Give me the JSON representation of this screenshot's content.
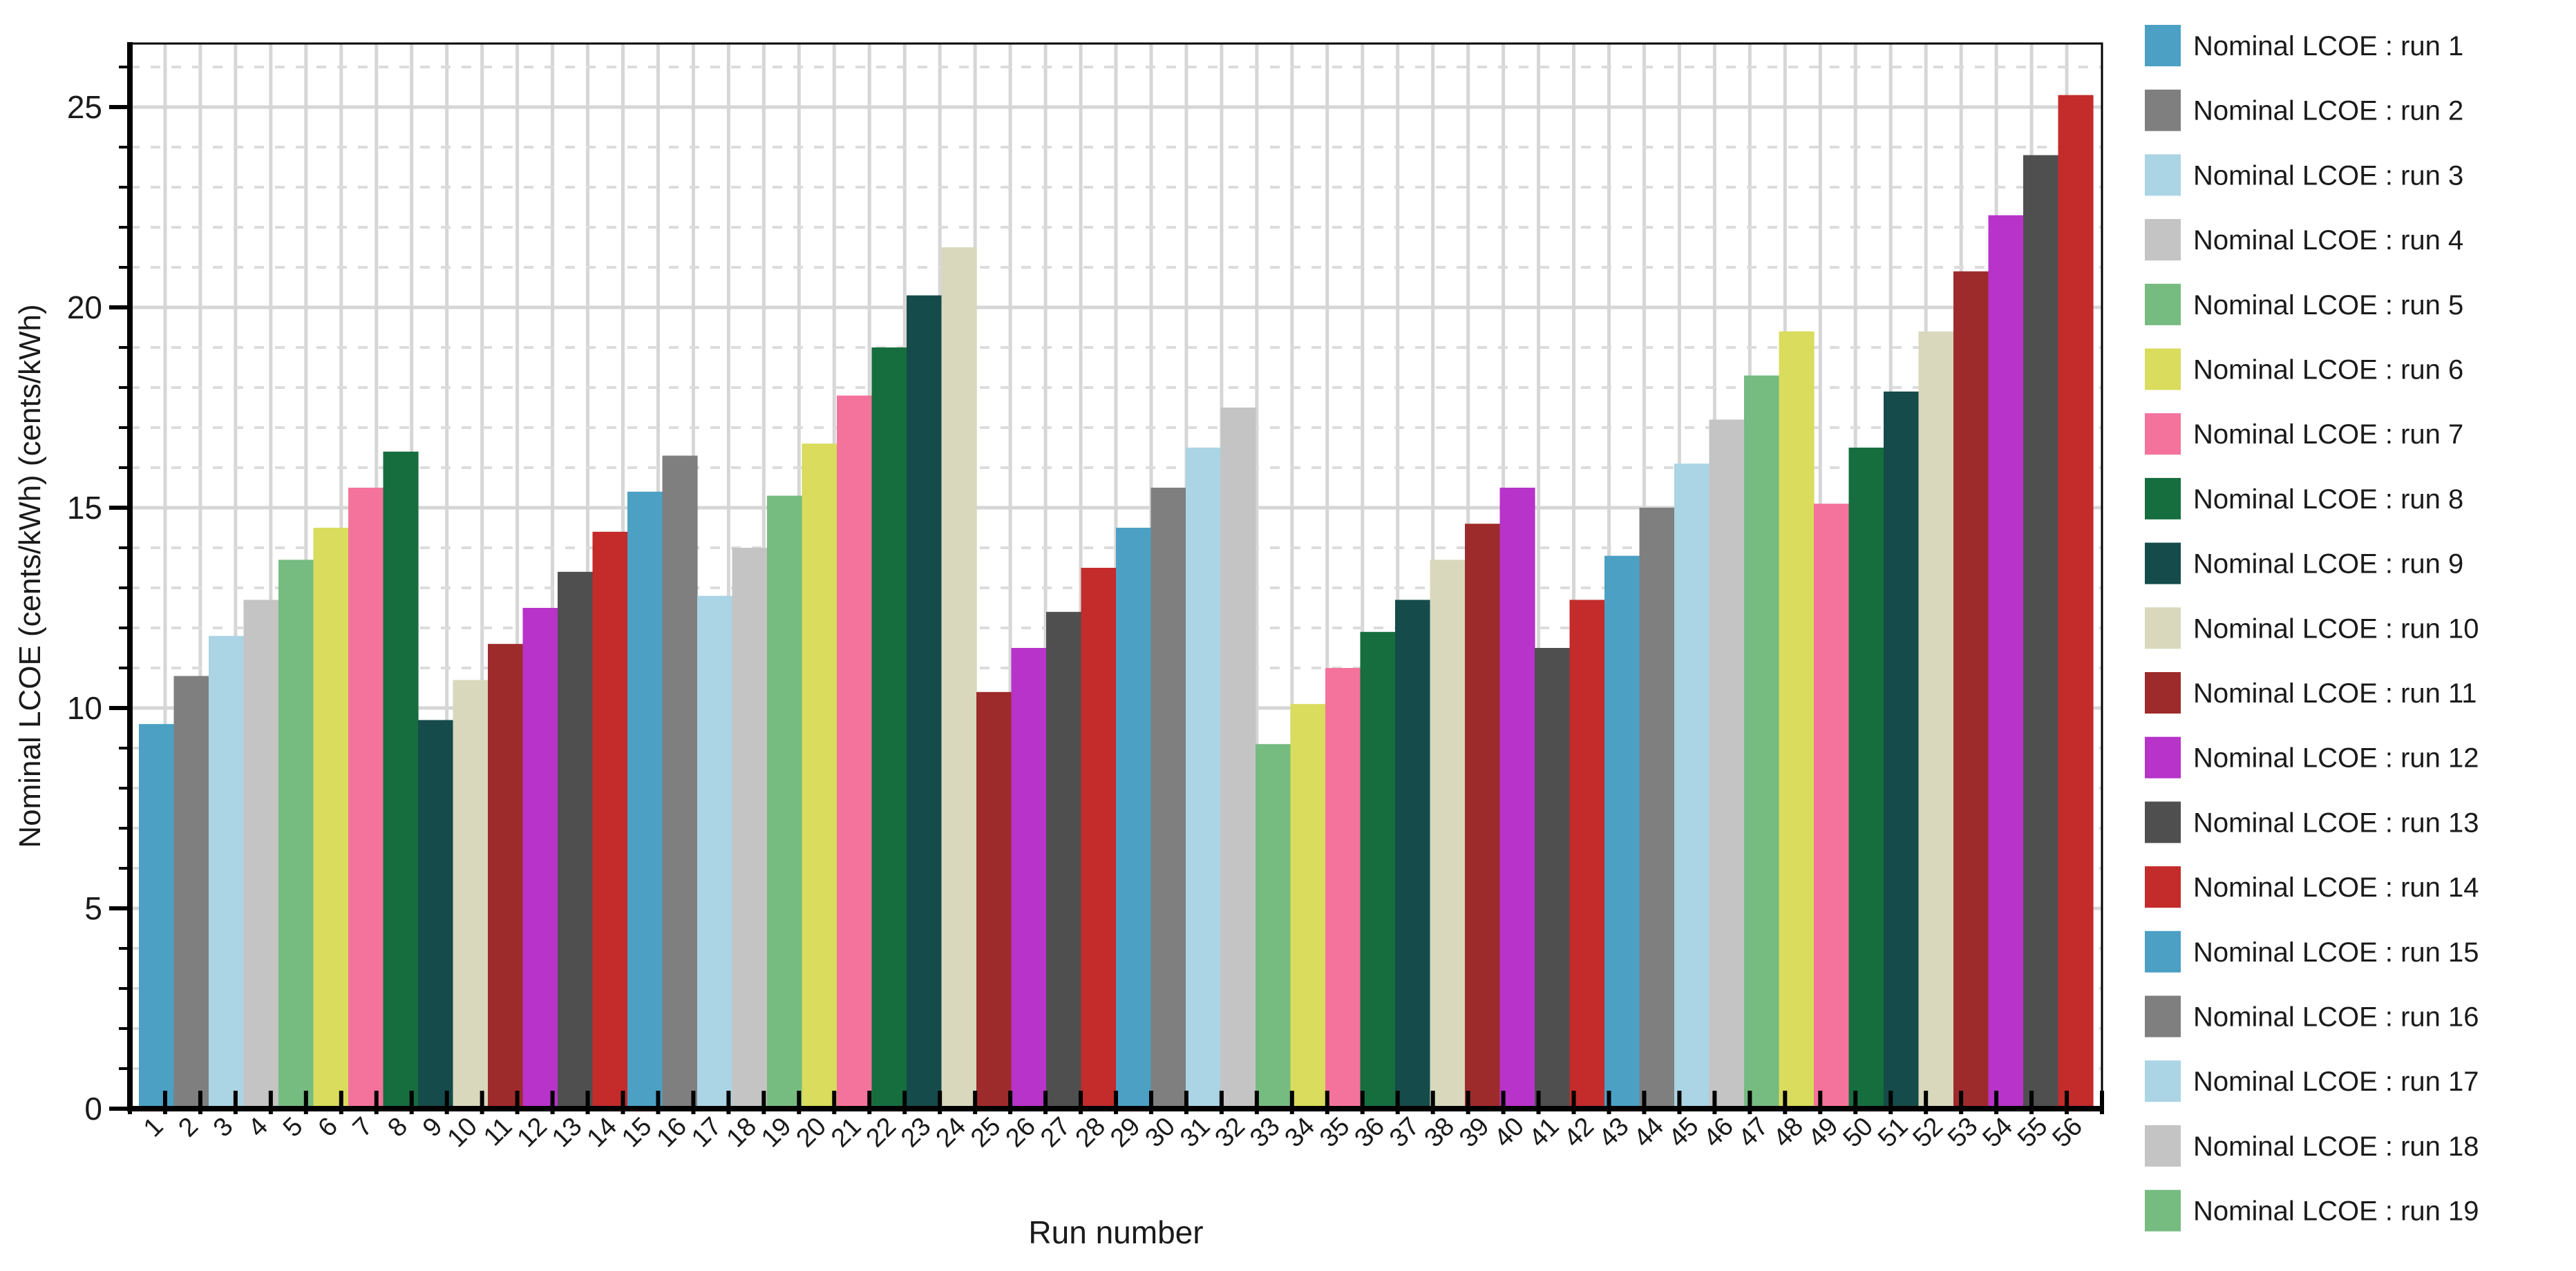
{
  "chart_data": {
    "type": "bar",
    "title": "",
    "xlabel": "Run number",
    "ylabel": "Nominal LCOE (cents/kWh) (cents/kWh)",
    "ylim": [
      0,
      26.6
    ],
    "yticks_major": [
      0,
      5,
      10,
      15,
      20,
      25
    ],
    "ytick_minor_step": 1,
    "grid": "on",
    "legend_position": "right-outside",
    "categories": [
      "1",
      "2",
      "3",
      "4",
      "5",
      "6",
      "7",
      "8",
      "9",
      "10",
      "11",
      "12",
      "13",
      "14",
      "15",
      "16",
      "17",
      "18",
      "19",
      "20",
      "21",
      "22",
      "23",
      "24",
      "25",
      "26",
      "27",
      "28",
      "29",
      "30",
      "31",
      "32",
      "33",
      "34",
      "35",
      "36",
      "37",
      "38",
      "39",
      "40",
      "41",
      "42",
      "43",
      "44",
      "45",
      "46",
      "47",
      "48",
      "49",
      "50",
      "51",
      "52",
      "53",
      "54",
      "55",
      "56"
    ],
    "values": [
      9.6,
      10.8,
      11.8,
      12.7,
      13.7,
      14.5,
      15.5,
      16.4,
      9.7,
      10.7,
      11.6,
      12.5,
      13.4,
      14.4,
      15.4,
      16.3,
      12.8,
      14.0,
      15.3,
      16.6,
      17.8,
      19.0,
      20.3,
      21.5,
      10.4,
      11.5,
      12.4,
      13.5,
      14.5,
      15.5,
      16.5,
      17.5,
      9.1,
      10.1,
      11.0,
      11.9,
      12.7,
      13.7,
      14.6,
      15.5,
      11.5,
      12.7,
      13.8,
      15.0,
      16.1,
      17.2,
      18.3,
      19.4,
      15.1,
      16.5,
      17.9,
      19.4,
      20.9,
      22.3,
      23.8,
      25.3
    ],
    "color_cycle": [
      "#4BA0C4",
      "#7F7F7F",
      "#ABD4E4",
      "#C4C4C4",
      "#76BB80",
      "#D9DC5C",
      "#F4739C",
      "#166E3F",
      "#154B4B",
      "#D9D8BD",
      "#9E2B2B",
      "#B733C9",
      "#4F4F4F",
      "#C42B2B"
    ],
    "legend_entries": [
      {
        "label": "Nominal LCOE : run 1",
        "color": "#4BA0C4"
      },
      {
        "label": "Nominal LCOE : run 2",
        "color": "#7F7F7F"
      },
      {
        "label": "Nominal LCOE : run 3",
        "color": "#ABD4E4"
      },
      {
        "label": "Nominal LCOE : run 4",
        "color": "#C4C4C4"
      },
      {
        "label": "Nominal LCOE : run 5",
        "color": "#76BB80"
      },
      {
        "label": "Nominal LCOE : run 6",
        "color": "#D9DC5C"
      },
      {
        "label": "Nominal LCOE : run 7",
        "color": "#F4739C"
      },
      {
        "label": "Nominal LCOE : run 8",
        "color": "#166E3F"
      },
      {
        "label": "Nominal LCOE : run 9",
        "color": "#154B4B"
      },
      {
        "label": "Nominal LCOE : run 10",
        "color": "#D9D8BD"
      },
      {
        "label": "Nominal LCOE : run 11",
        "color": "#9E2B2B"
      },
      {
        "label": "Nominal LCOE : run 12",
        "color": "#B733C9"
      },
      {
        "label": "Nominal LCOE : run 13",
        "color": "#4F4F4F"
      },
      {
        "label": "Nominal LCOE : run 14",
        "color": "#C42B2B"
      },
      {
        "label": "Nominal LCOE : run 15",
        "color": "#4BA0C4"
      },
      {
        "label": "Nominal LCOE : run 16",
        "color": "#7F7F7F"
      },
      {
        "label": "Nominal LCOE : run 17",
        "color": "#ABD4E4"
      },
      {
        "label": "Nominal LCOE : run 18",
        "color": "#C4C4C4"
      },
      {
        "label": "Nominal LCOE : run 19",
        "color": "#76BB80"
      }
    ],
    "style_colors": {
      "grid_minor": "#DCDCDC",
      "grid_major": "#D6D6D6",
      "frame": "#000000",
      "tick": "#000000",
      "tick_label": "#1A1A1A",
      "axis_title": "#1A1A1A",
      "legend_text": "#1A1A1A",
      "background": "#FFFFFF"
    }
  }
}
